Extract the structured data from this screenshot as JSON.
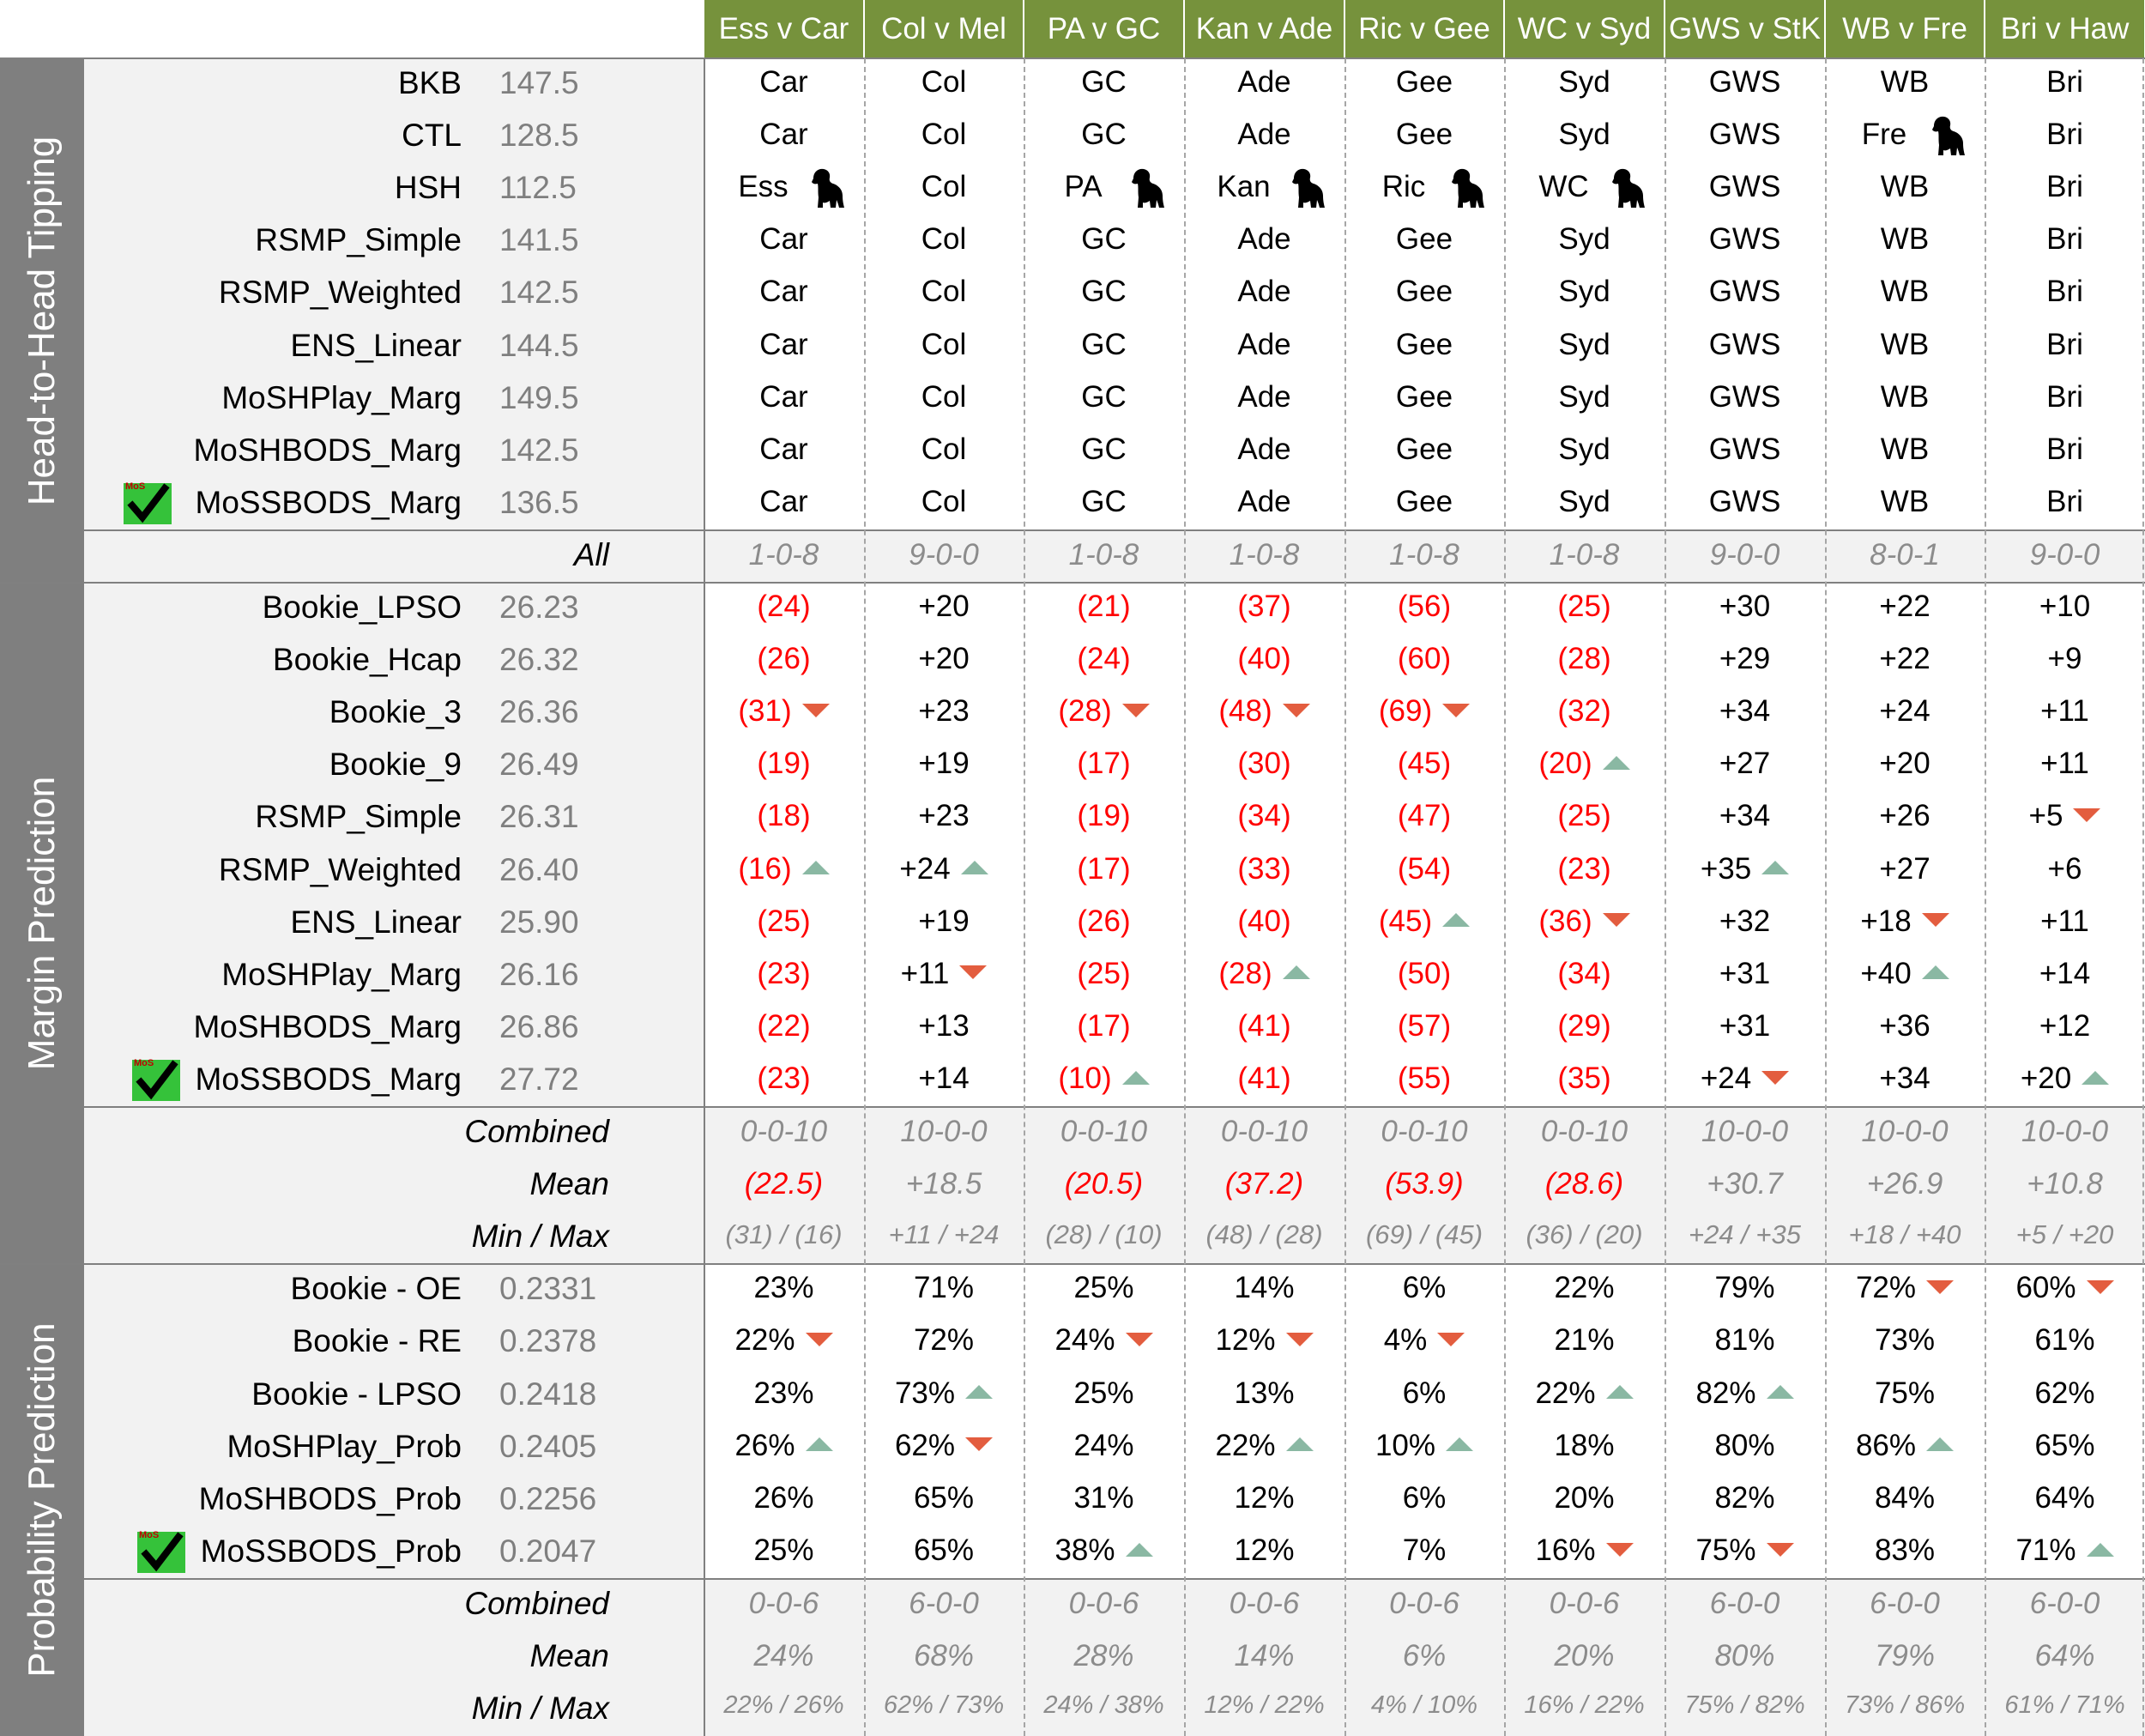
{
  "matches": [
    "Ess v Car",
    "Col v Mel",
    "PA v GC",
    "Kan v Ade",
    "Ric v Gee",
    "WC v Syd",
    "GWS v StK",
    "WB v Fre",
    "Bri v Haw"
  ],
  "sections": [
    {
      "title": "Head-to-Head Tipping",
      "rows": [
        {
          "name": "BKB",
          "score": "147.5",
          "cells": [
            "Car",
            "Col",
            "GC",
            "Ade",
            "Gee",
            "Syd",
            "GWS",
            "WB",
            "Bri"
          ]
        },
        {
          "name": "CTL",
          "score": "128.5",
          "cells": [
            "Car",
            "Col",
            "GC",
            "Ade",
            "Gee",
            "Syd",
            "GWS",
            "Fre",
            "Bri"
          ],
          "dogs": [
            7
          ]
        },
        {
          "name": "HSH",
          "score": "112.5",
          "cells": [
            "Ess",
            "Col",
            "PA",
            "Kan",
            "Ric",
            "WC",
            "GWS",
            "WB",
            "Bri"
          ],
          "dogs": [
            0,
            2,
            3,
            4,
            5
          ]
        },
        {
          "name": "RSMP_Simple",
          "score": "141.5",
          "cells": [
            "Car",
            "Col",
            "GC",
            "Ade",
            "Gee",
            "Syd",
            "GWS",
            "WB",
            "Bri"
          ]
        },
        {
          "name": "RSMP_Weighted",
          "score": "142.5",
          "cells": [
            "Car",
            "Col",
            "GC",
            "Ade",
            "Gee",
            "Syd",
            "GWS",
            "WB",
            "Bri"
          ]
        },
        {
          "name": "ENS_Linear",
          "score": "144.5",
          "cells": [
            "Car",
            "Col",
            "GC",
            "Ade",
            "Gee",
            "Syd",
            "GWS",
            "WB",
            "Bri"
          ]
        },
        {
          "name": "MoSHPlay_Marg",
          "score": "149.5",
          "cells": [
            "Car",
            "Col",
            "GC",
            "Ade",
            "Gee",
            "Syd",
            "GWS",
            "WB",
            "Bri"
          ]
        },
        {
          "name": "MoSHBODS_Marg",
          "score": "142.5",
          "cells": [
            "Car",
            "Col",
            "GC",
            "Ade",
            "Gee",
            "Syd",
            "GWS",
            "WB",
            "Bri"
          ]
        },
        {
          "name": "MoSSBODS_Marg",
          "score": "136.5",
          "cells": [
            "Car",
            "Col",
            "GC",
            "Ade",
            "Gee",
            "Syd",
            "GWS",
            "WB",
            "Bri"
          ],
          "check": true
        }
      ],
      "summary": [
        {
          "label": "All",
          "cells": [
            "1-0-8",
            "9-0-0",
            "1-0-8",
            "1-0-8",
            "1-0-8",
            "1-0-8",
            "9-0-0",
            "8-0-1",
            "9-0-0"
          ]
        }
      ]
    },
    {
      "title": "Margin Prediction",
      "rows": [
        {
          "name": "Bookie_LPSO",
          "score": "26.23",
          "cells": [
            "(24)",
            "+20",
            "(21)",
            "(37)",
            "(56)",
            "(25)",
            "+30",
            "+22",
            "+10"
          ]
        },
        {
          "name": "Bookie_Hcap",
          "score": "26.32",
          "cells": [
            "(26)",
            "+20",
            "(24)",
            "(40)",
            "(60)",
            "(28)",
            "+29",
            "+22",
            "+9"
          ]
        },
        {
          "name": "Bookie_3",
          "score": "26.36",
          "cells": [
            "(31)",
            "+23",
            "(28)",
            "(48)",
            "(69)",
            "(32)",
            "+34",
            "+24",
            "+11"
          ],
          "arrows": [
            "down",
            "",
            "down",
            "down",
            "down",
            "",
            "",
            "",
            ""
          ]
        },
        {
          "name": "Bookie_9",
          "score": "26.49",
          "cells": [
            "(19)",
            "+19",
            "(17)",
            "(30)",
            "(45)",
            "(20)",
            "+27",
            "+20",
            "+11"
          ],
          "arrows": [
            "",
            "",
            "",
            "",
            "",
            "up",
            "",
            "",
            ""
          ]
        },
        {
          "name": "RSMP_Simple",
          "score": "26.31",
          "cells": [
            "(18)",
            "+23",
            "(19)",
            "(34)",
            "(47)",
            "(25)",
            "+34",
            "+26",
            "+5"
          ],
          "arrows": [
            "",
            "",
            "",
            "",
            "",
            "",
            "",
            "",
            "down"
          ]
        },
        {
          "name": "RSMP_Weighted",
          "score": "26.40",
          "cells": [
            "(16)",
            "+24",
            "(17)",
            "(33)",
            "(54)",
            "(23)",
            "+35",
            "+27",
            "+6"
          ],
          "arrows": [
            "up",
            "up",
            "",
            "",
            "",
            "",
            "up",
            "",
            ""
          ]
        },
        {
          "name": "ENS_Linear",
          "score": "25.90",
          "cells": [
            "(25)",
            "+19",
            "(26)",
            "(40)",
            "(45)",
            "(36)",
            "+32",
            "+18",
            "+11"
          ],
          "arrows": [
            "",
            "",
            "",
            "",
            "up",
            "down",
            "",
            "down",
            ""
          ]
        },
        {
          "name": "MoSHPlay_Marg",
          "score": "26.16",
          "cells": [
            "(23)",
            "+11",
            "(25)",
            "(28)",
            "(50)",
            "(34)",
            "+31",
            "+40",
            "+14"
          ],
          "arrows": [
            "",
            "down",
            "",
            "up",
            "",
            "",
            "",
            "up",
            ""
          ]
        },
        {
          "name": "MoSHBODS_Marg",
          "score": "26.86",
          "cells": [
            "(22)",
            "+13",
            "(17)",
            "(41)",
            "(57)",
            "(29)",
            "+31",
            "+36",
            "+12"
          ]
        },
        {
          "name": "MoSSBODS_Marg",
          "score": "27.72",
          "cells": [
            "(23)",
            "+14",
            "(10)",
            "(41)",
            "(55)",
            "(35)",
            "+24",
            "+34",
            "+20"
          ],
          "arrows": [
            "",
            "",
            "up",
            "",
            "",
            "",
            "down",
            "",
            "up"
          ],
          "check": true
        }
      ],
      "summary": [
        {
          "label": "Combined",
          "cells": [
            "0-0-10",
            "10-0-0",
            "0-0-10",
            "0-0-10",
            "0-0-10",
            "0-0-10",
            "10-0-0",
            "10-0-0",
            "10-0-0"
          ]
        },
        {
          "label": "Mean",
          "cells": [
            "(22.5)",
            "+18.5",
            "(20.5)",
            "(37.2)",
            "(53.9)",
            "(28.6)",
            "+30.7",
            "+26.9",
            "+10.8"
          ]
        },
        {
          "label": "Min / Max",
          "cells": [
            "(31) / (16)",
            "+11 / +24",
            "(28) / (10)",
            "(48) / (28)",
            "(69) / (45)",
            "(36) / (20)",
            "+24 / +35",
            "+18 / +40",
            "+5 / +20"
          ]
        }
      ]
    },
    {
      "title": "Probability Prediction",
      "rows": [
        {
          "name": "Bookie - OE",
          "score": "0.2331",
          "cells": [
            "23%",
            "71%",
            "25%",
            "14%",
            "6%",
            "22%",
            "79%",
            "72%",
            "60%"
          ],
          "arrows": [
            "",
            "",
            "",
            "",
            "",
            "",
            "",
            "down",
            "down"
          ]
        },
        {
          "name": "Bookie - RE",
          "score": "0.2378",
          "cells": [
            "22%",
            "72%",
            "24%",
            "12%",
            "4%",
            "21%",
            "81%",
            "73%",
            "61%"
          ],
          "arrows": [
            "down",
            "",
            "down",
            "down",
            "down",
            "",
            "",
            "",
            ""
          ]
        },
        {
          "name": "Bookie - LPSO",
          "score": "0.2418",
          "cells": [
            "23%",
            "73%",
            "25%",
            "13%",
            "6%",
            "22%",
            "82%",
            "75%",
            "62%"
          ],
          "arrows": [
            "",
            "up",
            "",
            "",
            "",
            "up",
            "up",
            "",
            ""
          ]
        },
        {
          "name": "MoSHPlay_Prob",
          "score": "0.2405",
          "cells": [
            "26%",
            "62%",
            "24%",
            "22%",
            "10%",
            "18%",
            "80%",
            "86%",
            "65%"
          ],
          "arrows": [
            "up",
            "down",
            "",
            "up",
            "up",
            "",
            "",
            "up",
            ""
          ]
        },
        {
          "name": "MoSHBODS_Prob",
          "score": "0.2256",
          "cells": [
            "26%",
            "65%",
            "31%",
            "12%",
            "6%",
            "20%",
            "82%",
            "84%",
            "64%"
          ]
        },
        {
          "name": "MoSSBODS_Prob",
          "score": "0.2047",
          "cells": [
            "25%",
            "65%",
            "38%",
            "12%",
            "7%",
            "16%",
            "75%",
            "83%",
            "71%"
          ],
          "arrows": [
            "",
            "",
            "up",
            "",
            "",
            "down",
            "down",
            "",
            "up"
          ],
          "check": true
        }
      ],
      "summary": [
        {
          "label": "Combined",
          "cells": [
            "0-0-6",
            "6-0-0",
            "0-0-6",
            "0-0-6",
            "0-0-6",
            "0-0-6",
            "6-0-0",
            "6-0-0",
            "6-0-0"
          ]
        },
        {
          "label": "Mean",
          "cells": [
            "24%",
            "68%",
            "28%",
            "14%",
            "6%",
            "20%",
            "80%",
            "79%",
            "64%"
          ]
        },
        {
          "label": "Min / Max",
          "cells": [
            "22% / 26%",
            "62% / 73%",
            "24% / 38%",
            "12% / 22%",
            "4% / 10%",
            "16% / 22%",
            "75% / 82%",
            "73% / 86%",
            "61% / 71%"
          ]
        }
      ]
    }
  ],
  "colors": {
    "header_green": "#76923c",
    "sidebar_gray": "#7f7f7f",
    "negative_red": "#ff0000",
    "arrow_down": "#e35d3f",
    "arrow_up": "#8ab8a3",
    "check_green": "#35c23a"
  },
  "icons": {
    "underdog": "dog-icon",
    "best": "check-icon"
  }
}
